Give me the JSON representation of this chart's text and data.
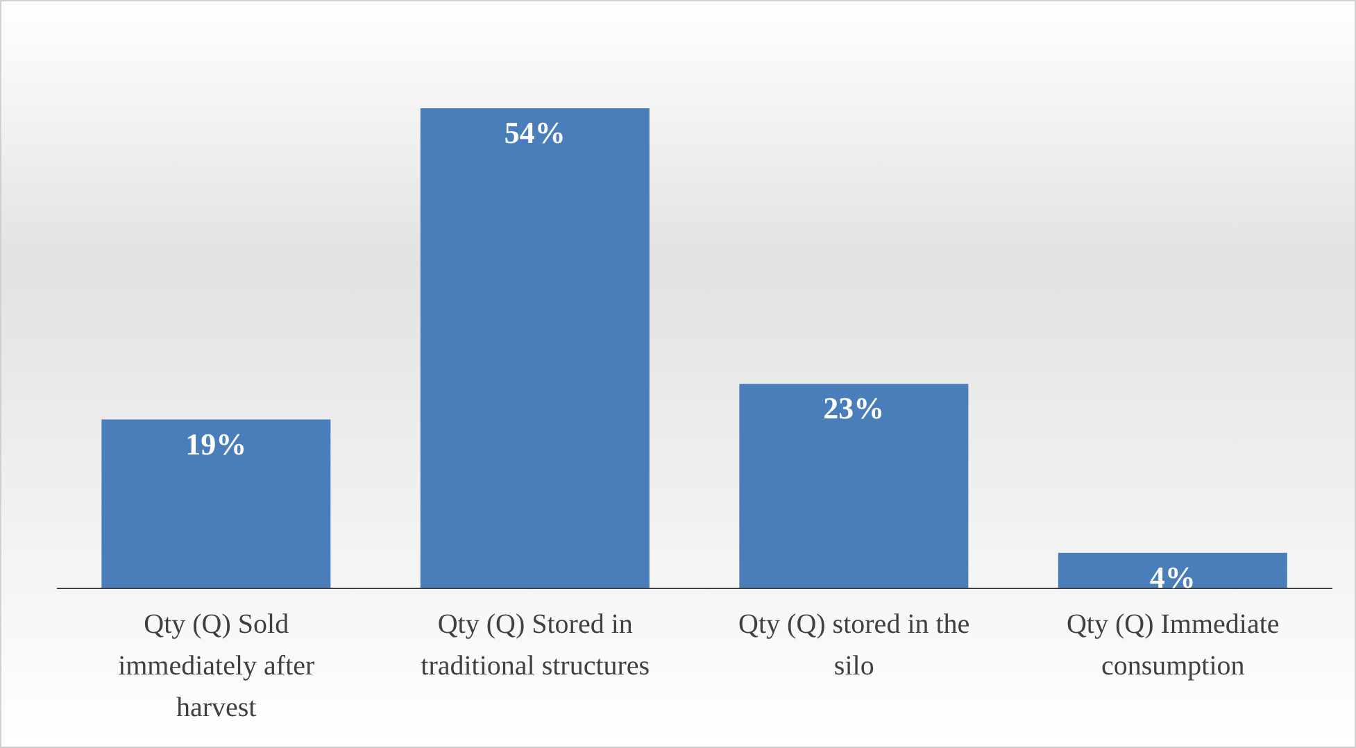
{
  "chart_data": {
    "type": "bar",
    "categories": [
      "Qty (Q) Sold immediately after harvest",
      "Qty (Q) Stored in traditional structures",
      "Qty (Q) stored in the silo",
      "Qty (Q) Immediate consumption"
    ],
    "values": [
      19,
      54,
      23,
      4
    ],
    "value_labels": [
      "19%",
      "54%",
      "23%",
      "4%"
    ],
    "color": "#4a7ebb"
  }
}
